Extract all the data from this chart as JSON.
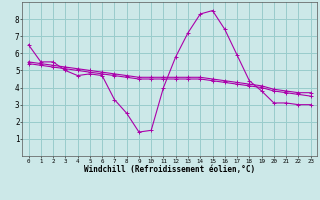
{
  "xlabel": "Windchill (Refroidissement éolien,°C)",
  "bg_color": "#cce8e8",
  "line_color": "#aa00aa",
  "grid_color": "#99cccc",
  "xlim": [
    -0.5,
    23.5
  ],
  "ylim": [
    0,
    9
  ],
  "xticks": [
    0,
    1,
    2,
    3,
    4,
    5,
    6,
    7,
    8,
    9,
    10,
    11,
    12,
    13,
    14,
    15,
    16,
    17,
    18,
    19,
    20,
    21,
    22,
    23
  ],
  "yticks": [
    1,
    2,
    3,
    4,
    5,
    6,
    7,
    8
  ],
  "series1_x": [
    0,
    1,
    2,
    3,
    4,
    5,
    6,
    7,
    8,
    9,
    10,
    11,
    12,
    13,
    14,
    15,
    16,
    17,
    18,
    19,
    20,
    21,
    22,
    23
  ],
  "series1_y": [
    6.5,
    5.5,
    5.5,
    5.0,
    4.7,
    4.8,
    4.7,
    3.3,
    2.5,
    1.4,
    1.5,
    4.0,
    5.8,
    7.2,
    8.3,
    8.5,
    7.4,
    5.9,
    4.4,
    3.8,
    3.1,
    3.1,
    3.0,
    3.0
  ],
  "series2_x": [
    0,
    1,
    2,
    3,
    4,
    5,
    6,
    7,
    8,
    9,
    10,
    11,
    12,
    13,
    14,
    15,
    16,
    17,
    18,
    19,
    20,
    21,
    22,
    23
  ],
  "series2_y": [
    5.5,
    5.4,
    5.3,
    5.2,
    5.1,
    5.0,
    4.9,
    4.8,
    4.7,
    4.6,
    4.6,
    4.6,
    4.6,
    4.6,
    4.6,
    4.5,
    4.4,
    4.3,
    4.2,
    4.1,
    3.9,
    3.8,
    3.7,
    3.7
  ],
  "series3_x": [
    0,
    1,
    2,
    3,
    4,
    5,
    6,
    7,
    8,
    9,
    10,
    11,
    12,
    13,
    14,
    15,
    16,
    17,
    18,
    19,
    20,
    21,
    22,
    23
  ],
  "series3_y": [
    5.4,
    5.3,
    5.2,
    5.1,
    5.0,
    4.9,
    4.8,
    4.7,
    4.6,
    4.5,
    4.5,
    4.5,
    4.5,
    4.5,
    4.5,
    4.4,
    4.3,
    4.2,
    4.1,
    4.0,
    3.8,
    3.7,
    3.6,
    3.5
  ],
  "xlabel_fontsize": 5.5,
  "tick_fontsize_x": 4.2,
  "tick_fontsize_y": 5.5
}
